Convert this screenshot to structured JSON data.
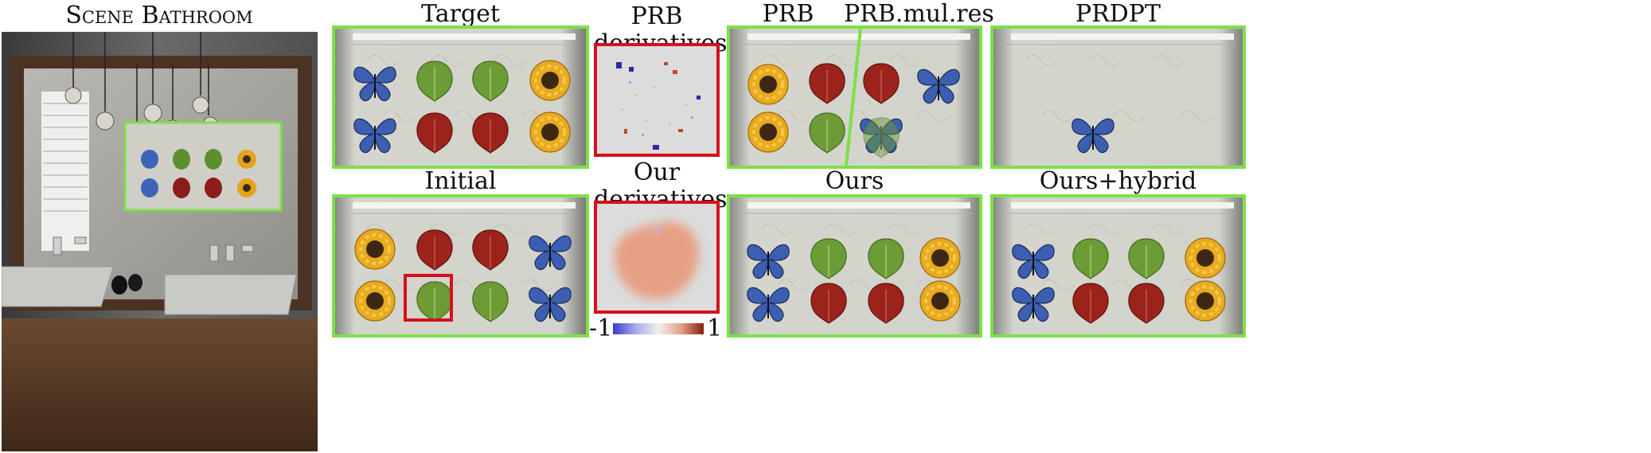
{
  "scene_title": "Scene Bathroom",
  "panels": {
    "target": "Target",
    "initial": "Initial",
    "prb_derivatives": "PRB derivatives",
    "our_derivatives": "Our derivatives",
    "prb": "PRB",
    "prb_mul_res": "PRB.mul.res",
    "prdpt": "PRDPT",
    "ours": "Ours",
    "ours_hybrid": "Ours+hybrid"
  },
  "colorbar": {
    "min_label": "-1",
    "max_label": "1"
  },
  "colors": {
    "frame_green": "#7de04a",
    "frame_red": "#d4101c"
  }
}
